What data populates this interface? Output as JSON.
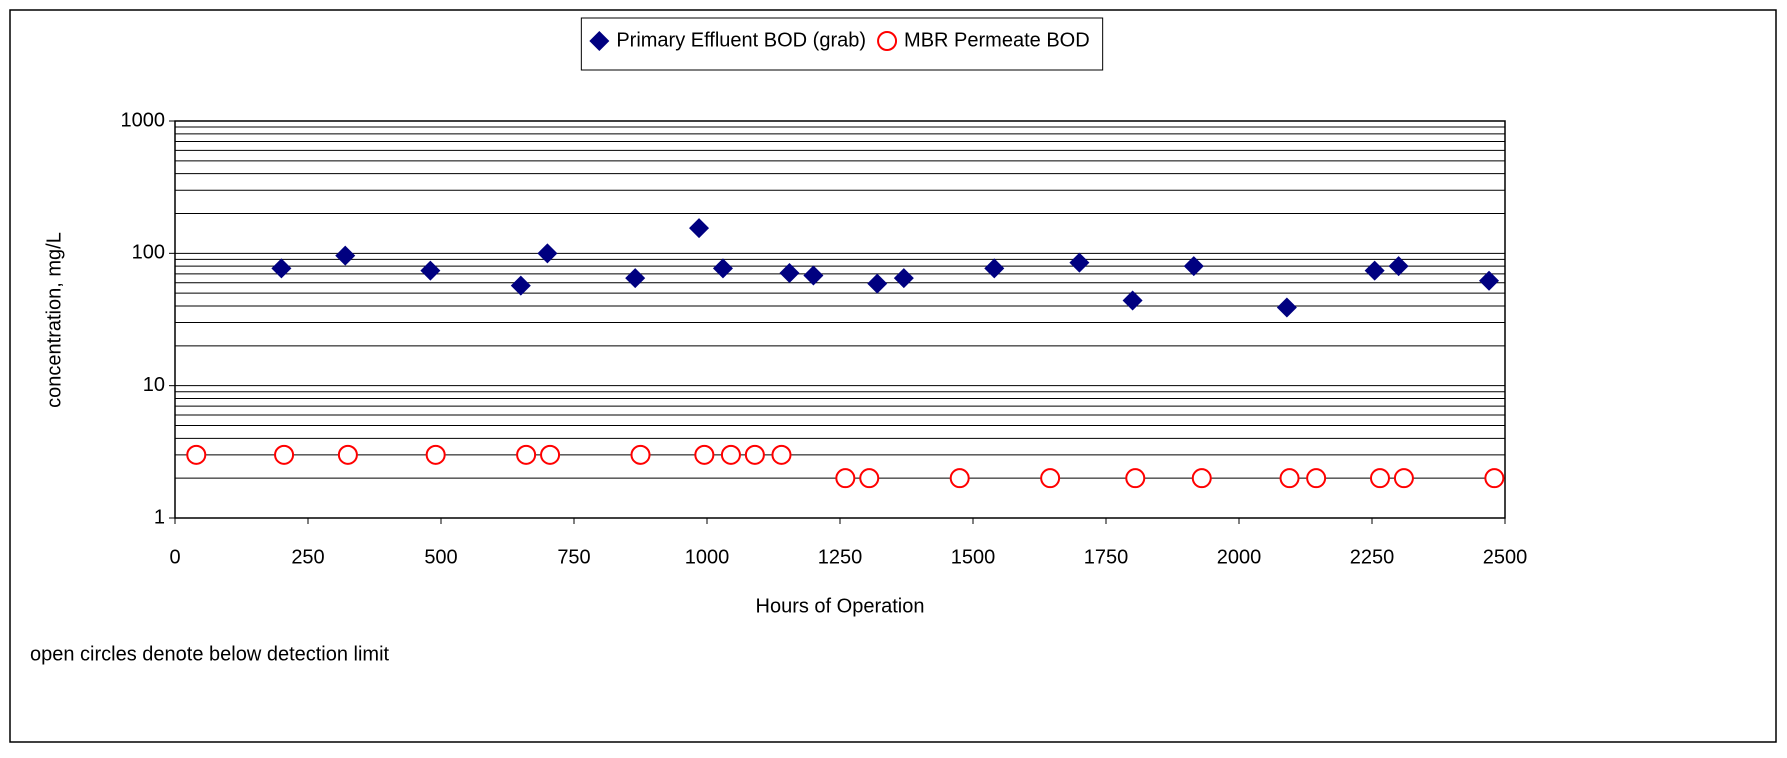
{
  "chart_data": {
    "type": "scatter",
    "xlabel": "Hours of Operation",
    "ylabel": "concentration, mg/L",
    "annotation": "open circles denote below detection limit",
    "xlim": [
      0,
      2500
    ],
    "xticks": [
      0,
      250,
      500,
      750,
      1000,
      1250,
      1500,
      1750,
      2000,
      2250,
      2500
    ],
    "ylim": [
      1,
      1000
    ],
    "yticks": [
      1,
      10,
      100,
      1000
    ],
    "log_y": true,
    "grid": true,
    "minor_grid": true,
    "legend": "top",
    "series": [
      {
        "name": "Primary Effluent BOD (grab)",
        "color": "#000080",
        "marker": "diamond",
        "x": [
          200,
          320,
          480,
          650,
          700,
          865,
          985,
          1030,
          1155,
          1200,
          1320,
          1370,
          1540,
          1700,
          1800,
          1915,
          2090,
          2255,
          2300,
          2470
        ],
        "values": [
          77,
          96,
          74,
          57,
          100,
          65,
          155,
          77,
          71,
          68,
          59,
          65,
          77,
          85,
          44,
          80,
          39,
          74,
          80,
          62
        ]
      },
      {
        "name": "MBR Permeate BOD",
        "color": "#ff0000",
        "marker": "circle",
        "x": [
          40,
          205,
          325,
          490,
          660,
          705,
          875,
          995,
          1045,
          1090,
          1140,
          1260,
          1305,
          1475,
          1645,
          1805,
          1930,
          2095,
          2145,
          2265,
          2310,
          2480
        ],
        "values": [
          3,
          3,
          3,
          3,
          3,
          3,
          3,
          3,
          3,
          3,
          3,
          2,
          2,
          2,
          2,
          2,
          2,
          2,
          2,
          2,
          2,
          2
        ]
      }
    ]
  }
}
